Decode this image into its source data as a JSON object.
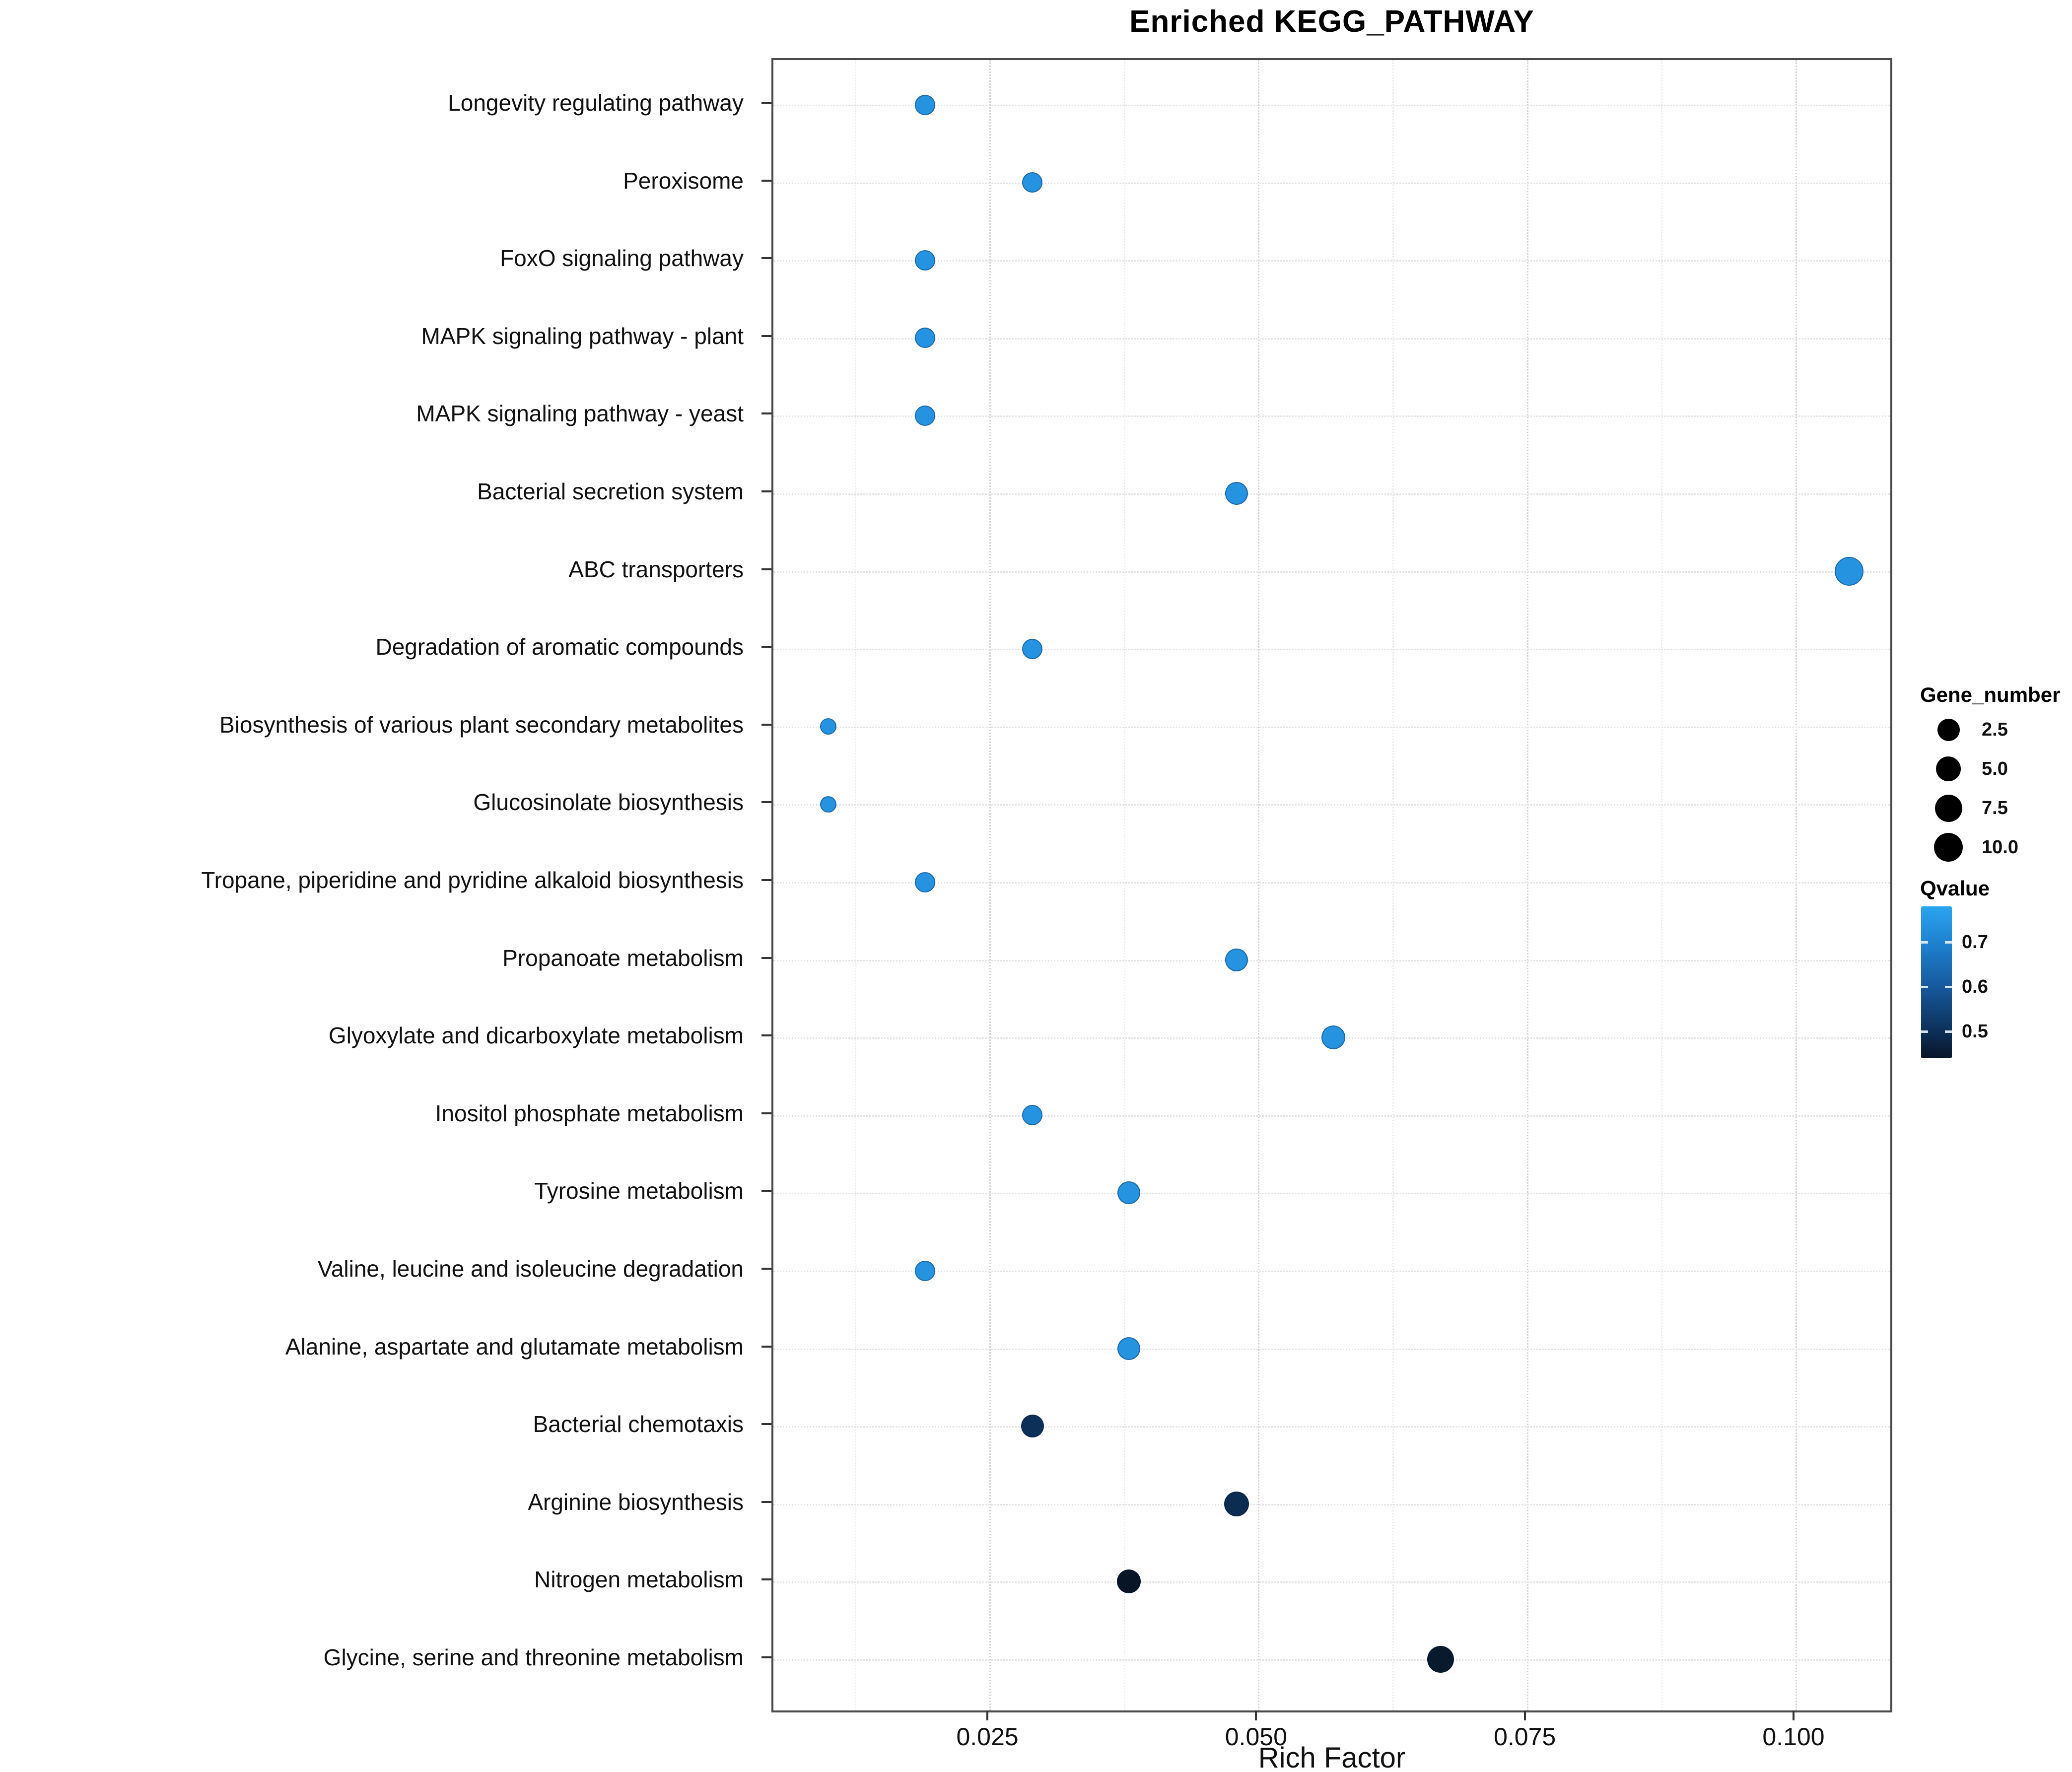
{
  "title": "Enriched KEGG_PATHWAY",
  "x_axis": {
    "label": "Rich Factor",
    "tick_labels": [
      "0.025",
      "0.050",
      "0.075",
      "0.100"
    ],
    "tick_values": [
      0.025,
      0.05,
      0.075,
      0.1
    ]
  },
  "legend": {
    "size": {
      "title": "Gene_number",
      "entries": [
        {
          "value": 2.5,
          "label": "2.5"
        },
        {
          "value": 5.0,
          "label": "5.0"
        },
        {
          "value": 7.5,
          "label": "7.5"
        },
        {
          "value": 10.0,
          "label": "10.0"
        }
      ]
    },
    "color": {
      "title": "Qvalue",
      "ticks": [
        {
          "value": 0.7,
          "label": "0.7"
        },
        {
          "value": 0.6,
          "label": "0.6"
        },
        {
          "value": 0.5,
          "label": "0.5"
        }
      ],
      "scale_min": 0.44,
      "scale_max": 0.78,
      "stops": [
        {
          "q": 0.44,
          "color": "#081527"
        },
        {
          "q": 0.5,
          "color": "#0d3059"
        },
        {
          "q": 0.6,
          "color": "#16599c"
        },
        {
          "q": 0.7,
          "color": "#1e82d0"
        },
        {
          "q": 0.78,
          "color": "#2ba4f0"
        }
      ]
    }
  },
  "chart_data": {
    "type": "scatter",
    "title": "Enriched KEGG_PATHWAY",
    "xlabel": "Rich Factor",
    "ylabel": "",
    "xlim": [
      0.005,
      0.109
    ],
    "x_ticks": [
      0.025,
      0.05,
      0.075,
      0.1
    ],
    "grid": "dotted",
    "legend_position": "right",
    "point_color_high": "#2491e0",
    "point_color_low": "#081527",
    "categories": [
      "Longevity regulating pathway",
      "Peroxisome",
      "FoxO signaling pathway",
      "MAPK signaling pathway - plant",
      "MAPK signaling pathway - yeast",
      "Bacterial secretion system",
      "ABC transporters",
      "Degradation of aromatic compounds",
      "Biosynthesis of various plant secondary metabolites",
      "Glucosinolate biosynthesis",
      "Tropane, piperidine and pyridine alkaloid biosynthesis",
      "Propanoate metabolism",
      "Glyoxylate and dicarboxylate metabolism",
      "Inositol phosphate metabolism",
      "Tyrosine metabolism",
      "Valine, leucine and isoleucine degradation",
      "Alanine, aspartate and glutamate metabolism",
      "Bacterial chemotaxis",
      "Arginine biosynthesis",
      "Nitrogen metabolism",
      "Glycine, serine and threonine metabolism"
    ],
    "points": [
      {
        "pathway": "Longevity regulating pathway",
        "rich_factor": 0.019,
        "gene_number": 2,
        "qvalue": 0.74
      },
      {
        "pathway": "Peroxisome",
        "rich_factor": 0.029,
        "gene_number": 2,
        "qvalue": 0.74
      },
      {
        "pathway": "FoxO signaling pathway",
        "rich_factor": 0.019,
        "gene_number": 2,
        "qvalue": 0.74
      },
      {
        "pathway": "MAPK signaling pathway - plant",
        "rich_factor": 0.019,
        "gene_number": 2,
        "qvalue": 0.74
      },
      {
        "pathway": "MAPK signaling pathway - yeast",
        "rich_factor": 0.019,
        "gene_number": 2,
        "qvalue": 0.74
      },
      {
        "pathway": "Bacterial secretion system",
        "rich_factor": 0.048,
        "gene_number": 3,
        "qvalue": 0.74
      },
      {
        "pathway": "ABC transporters",
        "rich_factor": 0.105,
        "gene_number": 10,
        "qvalue": 0.74
      },
      {
        "pathway": "Degradation of aromatic compounds",
        "rich_factor": 0.029,
        "gene_number": 2,
        "qvalue": 0.74
      },
      {
        "pathway": "Biosynthesis of various plant secondary metabolites",
        "rich_factor": 0.01,
        "gene_number": 1,
        "qvalue": 0.74
      },
      {
        "pathway": "Glucosinolate biosynthesis",
        "rich_factor": 0.01,
        "gene_number": 1,
        "qvalue": 0.74
      },
      {
        "pathway": "Tropane, piperidine and pyridine alkaloid biosynthesis",
        "rich_factor": 0.019,
        "gene_number": 2,
        "qvalue": 0.74
      },
      {
        "pathway": "Propanoate metabolism",
        "rich_factor": 0.048,
        "gene_number": 3,
        "qvalue": 0.74
      },
      {
        "pathway": "Glyoxylate and dicarboxylate metabolism",
        "rich_factor": 0.057,
        "gene_number": 4,
        "qvalue": 0.74
      },
      {
        "pathway": "Inositol phosphate metabolism",
        "rich_factor": 0.029,
        "gene_number": 2,
        "qvalue": 0.74
      },
      {
        "pathway": "Tyrosine metabolism",
        "rich_factor": 0.038,
        "gene_number": 3,
        "qvalue": 0.74
      },
      {
        "pathway": "Valine, leucine and isoleucine degradation",
        "rich_factor": 0.019,
        "gene_number": 2,
        "qvalue": 0.74
      },
      {
        "pathway": "Alanine, aspartate and glutamate metabolism",
        "rich_factor": 0.038,
        "gene_number": 3,
        "qvalue": 0.74
      },
      {
        "pathway": "Bacterial chemotaxis",
        "rich_factor": 0.029,
        "gene_number": 3,
        "qvalue": 0.5
      },
      {
        "pathway": "Arginine biosynthesis",
        "rich_factor": 0.048,
        "gene_number": 5,
        "qvalue": 0.49
      },
      {
        "pathway": "Nitrogen metabolism",
        "rich_factor": 0.038,
        "gene_number": 4,
        "qvalue": 0.44
      },
      {
        "pathway": "Glycine, serine and threonine metabolism",
        "rich_factor": 0.067,
        "gene_number": 7,
        "qvalue": 0.45
      }
    ]
  }
}
